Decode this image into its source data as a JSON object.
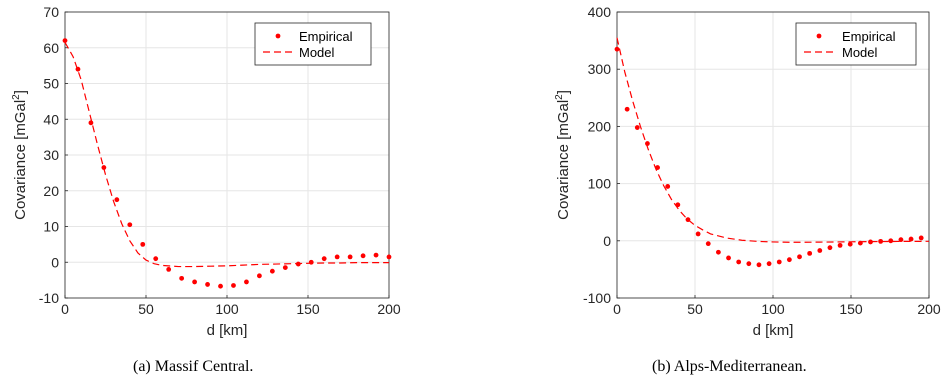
{
  "chart_data": [
    {
      "type": "scatter",
      "caption": "(a) Massif Central.",
      "xlabel": "d [km]",
      "ylabel": "Covariance [mGal",
      "ylabel_sup": "2",
      "ylabel_end": "]",
      "xlim": [
        0,
        200
      ],
      "ylim": [
        -10,
        70
      ],
      "xticks": [
        0,
        50,
        100,
        150,
        200
      ],
      "yticks": [
        -10,
        0,
        10,
        20,
        30,
        40,
        50,
        60,
        70
      ],
      "grid": true,
      "legend_position": "top-right",
      "color": "#ff0000",
      "series": [
        {
          "name": "Empirical",
          "style": "markers",
          "x": [
            0,
            8,
            16,
            24,
            32,
            40,
            48,
            56,
            64,
            72,
            80,
            88,
            96,
            104,
            112,
            120,
            128,
            136,
            144,
            152,
            160,
            168,
            176,
            184,
            192,
            200
          ],
          "y": [
            62,
            54,
            39,
            26.5,
            17.5,
            10.5,
            5,
            1,
            -2,
            -4.5,
            -5.5,
            -6.2,
            -6.7,
            -6.5,
            -5.5,
            -3.8,
            -2.5,
            -1.5,
            -0.5,
            0,
            1,
            1.5,
            1.5,
            1.8,
            2,
            1.5
          ]
        },
        {
          "name": "Model",
          "style": "dashed",
          "x": [
            0,
            5,
            10,
            15,
            20,
            25,
            30,
            35,
            40,
            45,
            50,
            55,
            60,
            70,
            80,
            90,
            100,
            110,
            120,
            130,
            140,
            150,
            160,
            170,
            180,
            190,
            200
          ],
          "y": [
            61.5,
            57.5,
            51,
            42,
            33,
            24.5,
            17,
            10.8,
            6,
            2.6,
            0.6,
            -0.4,
            -0.9,
            -1.2,
            -1.2,
            -1.1,
            -1.0,
            -0.8,
            -0.6,
            -0.5,
            -0.4,
            -0.3,
            -0.2,
            -0.2,
            -0.1,
            -0.1,
            -0.1
          ]
        }
      ]
    },
    {
      "type": "scatter",
      "caption": "(b) Alps-Mediterranean.",
      "xlabel": "d [km]",
      "ylabel": "Covariance [mGal",
      "ylabel_sup": "2",
      "ylabel_end": "]",
      "xlim": [
        0,
        200
      ],
      "ylim": [
        -100,
        400
      ],
      "xticks": [
        0,
        50,
        100,
        150,
        200
      ],
      "yticks": [
        -100,
        0,
        100,
        200,
        300,
        400
      ],
      "grid": true,
      "legend_position": "top-right",
      "color": "#ff0000",
      "series": [
        {
          "name": "Empirical",
          "style": "markers",
          "x": [
            0,
            6.5,
            13,
            19.5,
            26,
            32.5,
            39,
            45.5,
            52,
            58.5,
            65,
            71.5,
            78,
            84.5,
            91,
            97.5,
            104,
            110.5,
            117,
            123.5,
            130,
            136.5,
            143,
            149.5,
            156,
            162.5,
            169,
            175.5,
            182,
            188.5,
            195
          ],
          "y": [
            335,
            230,
            198,
            170,
            128,
            95,
            63,
            37,
            12,
            -5,
            -20,
            -30,
            -37,
            -40,
            -42,
            -40,
            -37,
            -33,
            -28,
            -22,
            -17,
            -12,
            -8,
            -6,
            -4,
            -2,
            -1,
            0,
            2,
            3,
            5
          ]
        },
        {
          "name": "Model",
          "style": "dashed",
          "x": [
            0,
            5,
            10,
            15,
            20,
            25,
            30,
            35,
            40,
            45,
            50,
            55,
            60,
            70,
            80,
            90,
            100,
            110,
            120,
            130,
            140,
            150,
            160,
            170,
            180,
            190,
            200
          ],
          "y": [
            355,
            295,
            245,
            200,
            160,
            125,
            96,
            72,
            53,
            38,
            27,
            19,
            12,
            5,
            1,
            -1,
            -2,
            -2.5,
            -2.5,
            -2.3,
            -2,
            -1.8,
            -1.5,
            -1.3,
            -1.1,
            -1,
            -0.9
          ]
        }
      ]
    }
  ]
}
